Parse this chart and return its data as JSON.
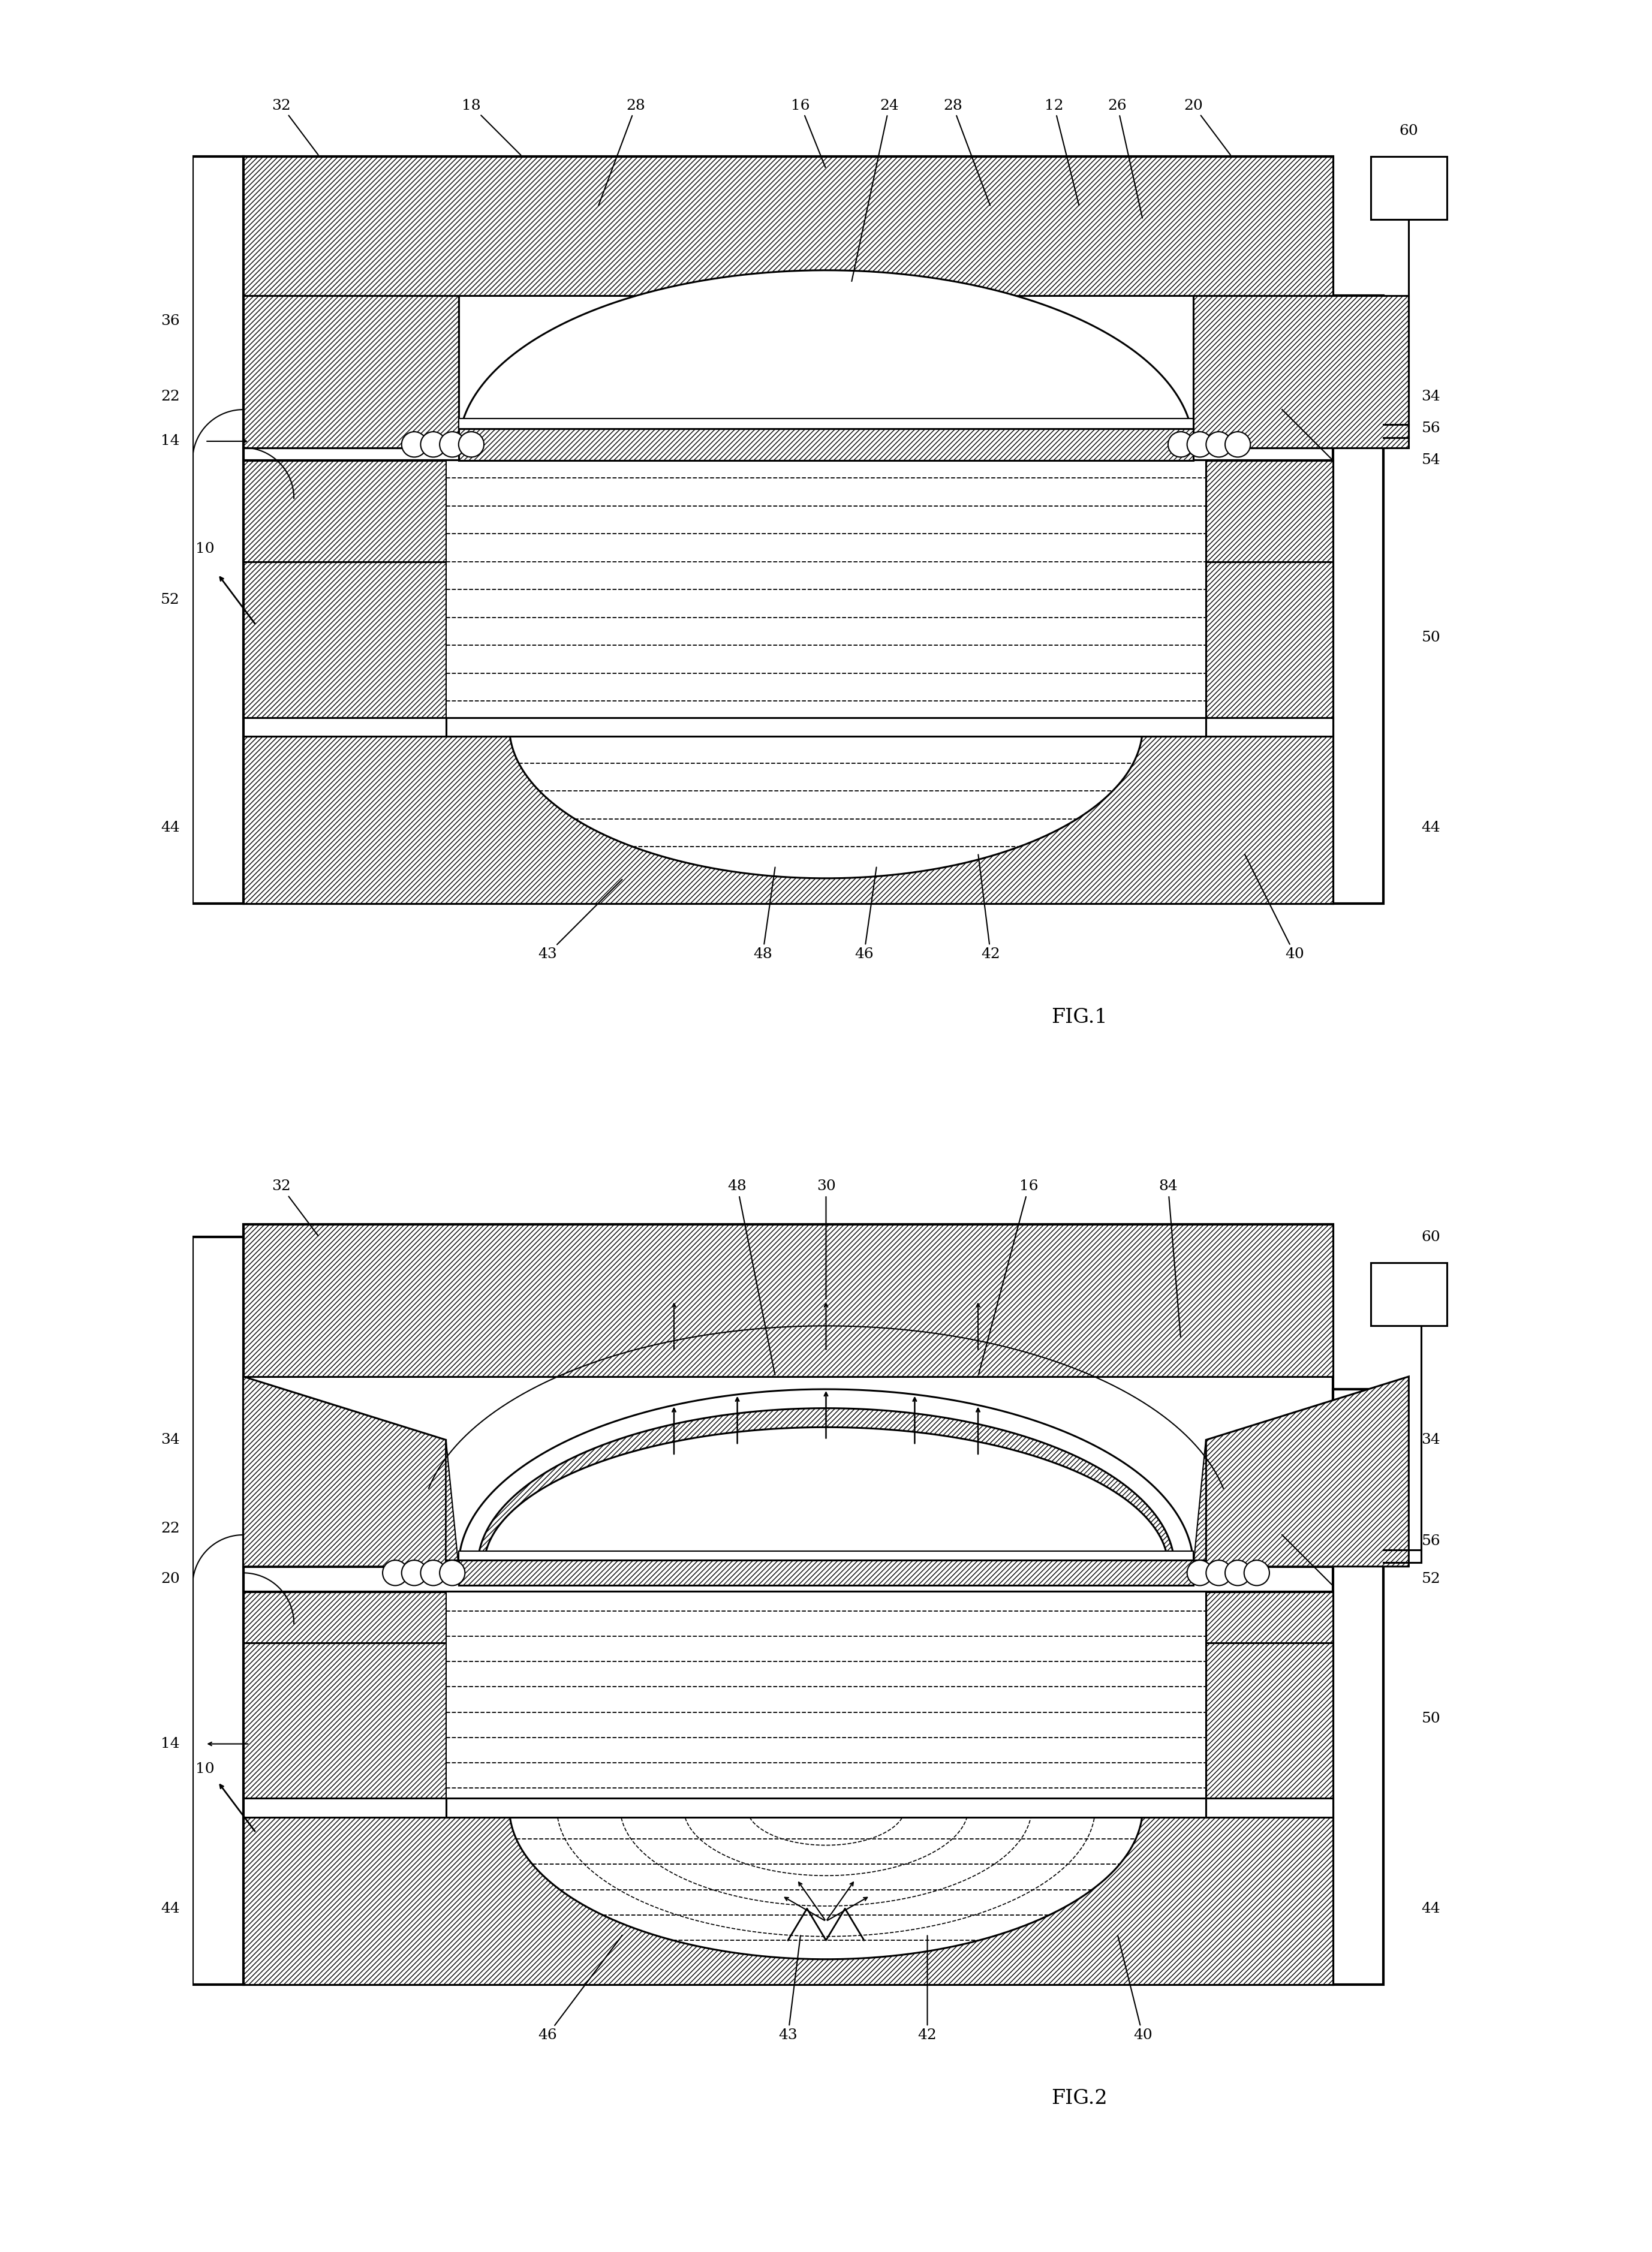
{
  "bg_color": "#ffffff",
  "fig1_title": "FIG.1",
  "fig2_title": "FIG.2",
  "font_size": 18,
  "font_size_caption": 24
}
